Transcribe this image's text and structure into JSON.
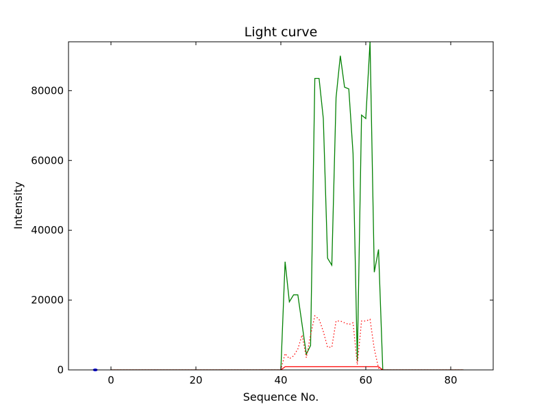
{
  "chart_data": {
    "type": "line",
    "title": "Light curve",
    "xlabel": "Sequence No.",
    "ylabel": "Intensity",
    "xlim": [
      -10,
      90
    ],
    "ylim": [
      0,
      94000
    ],
    "grid": false,
    "xticks": [
      0,
      20,
      40,
      60,
      80
    ],
    "yticks": [
      0,
      20000,
      40000,
      60000,
      80000
    ],
    "xtick_labels": [
      "0",
      "20",
      "40",
      "60",
      "80"
    ],
    "ytick_labels": [
      "0",
      "20000",
      "40000",
      "60000",
      "80000"
    ],
    "series": [
      {
        "color": "#008000",
        "style": "solid",
        "x": [
          0,
          40,
          41,
          42,
          43,
          44,
          45,
          46,
          47,
          48,
          49,
          50,
          51,
          52,
          53,
          54,
          55,
          56,
          57,
          58,
          59,
          60,
          61,
          62,
          63,
          64,
          83
        ],
        "y": [
          0,
          0,
          31000,
          19500,
          21500,
          21500,
          13000,
          4500,
          7000,
          83500,
          83500,
          72000,
          32000,
          30000,
          78000,
          90000,
          81000,
          80500,
          62000,
          2500,
          73000,
          72000,
          94000,
          28000,
          34500,
          0,
          0
        ]
      },
      {
        "color": "#ff0000",
        "style": "dotted",
        "x": [
          0,
          40,
          41,
          42,
          43,
          44,
          45,
          46,
          47,
          48,
          49,
          50,
          51,
          52,
          53,
          54,
          55,
          56,
          57,
          58,
          59,
          60,
          61,
          62,
          63,
          64,
          83
        ],
        "y": [
          0,
          0,
          4700,
          3200,
          4000,
          6000,
          10000,
          3500,
          10000,
          15500,
          14500,
          11000,
          6500,
          6500,
          14000,
          14000,
          13500,
          13000,
          13500,
          1500,
          14000,
          14000,
          14500,
          6000,
          500,
          0,
          0
        ]
      },
      {
        "color": "#ff0000",
        "style": "solid",
        "x": [
          0,
          40,
          41,
          42,
          63,
          64,
          83
        ],
        "y": [
          0,
          0,
          900,
          900,
          900,
          0,
          0
        ]
      }
    ],
    "points": [
      {
        "color": "#0000ff",
        "x": -3.7,
        "y": 0
      }
    ]
  }
}
